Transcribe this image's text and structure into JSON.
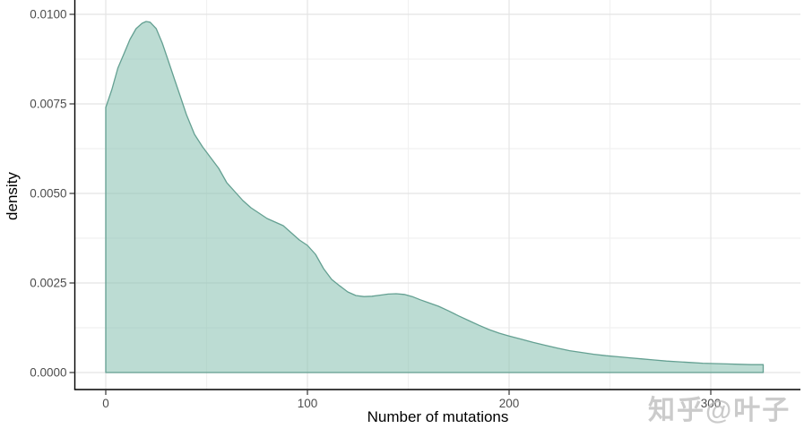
{
  "chart_data": {
    "type": "area",
    "subtype": "density-curve",
    "title": "",
    "xlabel": "Number of mutations",
    "ylabel": "density",
    "xlim": [
      -15,
      345
    ],
    "ylim": [
      0,
      0.0104
    ],
    "grid": "major+minor",
    "legend": "none",
    "x_ticks": {
      "values": [
        0,
        100,
        200,
        300
      ],
      "labels": [
        "0",
        "100",
        "200",
        "300"
      ],
      "minor": [
        50,
        150,
        250,
        350
      ]
    },
    "y_ticks": {
      "values": [
        0,
        0.0025,
        0.005,
        0.0075,
        0.01
      ],
      "labels": [
        "0.0000",
        "0.0025",
        "0.0050",
        "0.0075",
        "0.0100"
      ],
      "minor": [
        0.00125,
        0.00375,
        0.00625,
        0.00875
      ]
    },
    "series": [
      {
        "name": "density",
        "points": [
          [
            0,
            0.0074
          ],
          [
            3,
            0.0079
          ],
          [
            6,
            0.0085
          ],
          [
            9,
            0.0089
          ],
          [
            12,
            0.0093
          ],
          [
            15,
            0.0096
          ],
          [
            18,
            0.00975
          ],
          [
            20,
            0.0098
          ],
          [
            22,
            0.00978
          ],
          [
            25,
            0.0096
          ],
          [
            28,
            0.0092
          ],
          [
            31,
            0.0087
          ],
          [
            34,
            0.0082
          ],
          [
            37,
            0.0077
          ],
          [
            40,
            0.0072
          ],
          [
            44,
            0.00665
          ],
          [
            48,
            0.0063
          ],
          [
            52,
            0.006
          ],
          [
            56,
            0.0057
          ],
          [
            60,
            0.0053
          ],
          [
            64,
            0.00505
          ],
          [
            68,
            0.0048
          ],
          [
            72,
            0.0046
          ],
          [
            76,
            0.00445
          ],
          [
            80,
            0.0043
          ],
          [
            84,
            0.0042
          ],
          [
            88,
            0.0041
          ],
          [
            92,
            0.0039
          ],
          [
            96,
            0.0037
          ],
          [
            100,
            0.00355
          ],
          [
            104,
            0.0033
          ],
          [
            108,
            0.0029
          ],
          [
            112,
            0.0026
          ],
          [
            116,
            0.00242
          ],
          [
            120,
            0.00225
          ],
          [
            124,
            0.00215
          ],
          [
            128,
            0.00212
          ],
          [
            132,
            0.00213
          ],
          [
            136,
            0.00216
          ],
          [
            140,
            0.00219
          ],
          [
            144,
            0.0022
          ],
          [
            148,
            0.00218
          ],
          [
            152,
            0.00212
          ],
          [
            156,
            0.00203
          ],
          [
            160,
            0.00195
          ],
          [
            165,
            0.00185
          ],
          [
            170,
            0.00172
          ],
          [
            175,
            0.00158
          ],
          [
            180,
            0.00145
          ],
          [
            185,
            0.00132
          ],
          [
            190,
            0.0012
          ],
          [
            195,
            0.0011
          ],
          [
            200,
            0.00102
          ],
          [
            206,
            0.00093
          ],
          [
            212,
            0.00084
          ],
          [
            218,
            0.00076
          ],
          [
            224,
            0.00068
          ],
          [
            230,
            0.00061
          ],
          [
            236,
            0.00056
          ],
          [
            242,
            0.00051
          ],
          [
            248,
            0.00047
          ],
          [
            254,
            0.00044
          ],
          [
            260,
            0.00041
          ],
          [
            266,
            0.00038
          ],
          [
            272,
            0.00035
          ],
          [
            278,
            0.00032
          ],
          [
            284,
            0.0003
          ],
          [
            290,
            0.00028
          ],
          [
            296,
            0.00026
          ],
          [
            302,
            0.00025
          ],
          [
            308,
            0.00024
          ],
          [
            314,
            0.00023
          ],
          [
            320,
            0.00022
          ],
          [
            326,
            0.00022
          ]
        ]
      }
    ]
  },
  "colors": {
    "area_fill": "#8fc4b6",
    "area_fill_opacity": "0.6",
    "area_stroke": "#64a092",
    "grid_major": "#e4e4e4",
    "grid_minor": "#f1f1f1",
    "axis_line": "#000000",
    "tick_mark": "#333333",
    "tick_label": "#4d4d4d",
    "axis_title": "#000000",
    "watermark": "#b9b9b9"
  },
  "axis_titles": {
    "x": "Number of mutations",
    "y": "density"
  },
  "watermark": {
    "text": "知乎@叶子"
  }
}
